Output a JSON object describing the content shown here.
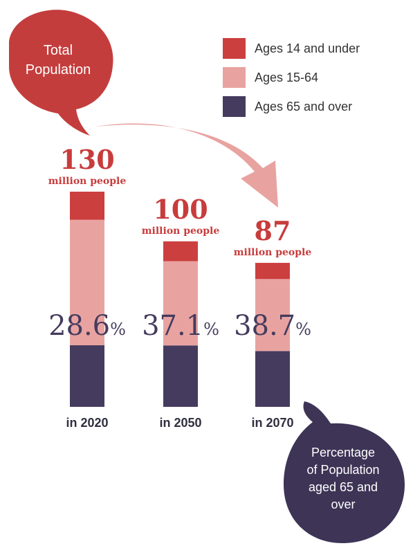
{
  "callouts": {
    "total": {
      "line1": "Total",
      "line2": "Population"
    },
    "elderly": {
      "line1": "Percentage",
      "line2": "of Population",
      "line3": "aged 65 and",
      "line4": "over"
    }
  },
  "colors": {
    "young": "#cc3f3f",
    "working": "#e8a3a1",
    "elderly": "#453b5e",
    "total_bubble": "#c43d3d",
    "arrow": "#e8a3a1",
    "elderly_bubble": "#3d3456",
    "label_red": "#c83c3c",
    "pct_text": "#453b5e"
  },
  "chart_data": {
    "type": "bar",
    "stacked": true,
    "categories": [
      "in 2020",
      "in 2050",
      "in 2070"
    ],
    "totals": [
      130,
      100,
      87
    ],
    "total_values_text": [
      "130",
      "100",
      "87"
    ],
    "total_unit": "million people",
    "elderly_share_text": [
      "28.6",
      "37.1",
      "38.7"
    ],
    "percent_sign": "%",
    "series": [
      {
        "name": "Ages 14 and under",
        "color_key": "young",
        "values": [
          17.0,
          12.0,
          9.8
        ]
      },
      {
        "name": "Ages 15-64",
        "color_key": "working",
        "values": [
          75.8,
          50.9,
          43.5
        ]
      },
      {
        "name": "Ages 65 and over",
        "color_key": "elderly",
        "values": [
          37.2,
          37.1,
          33.7
        ]
      }
    ],
    "legend_position": "top-right",
    "grid": false
  }
}
